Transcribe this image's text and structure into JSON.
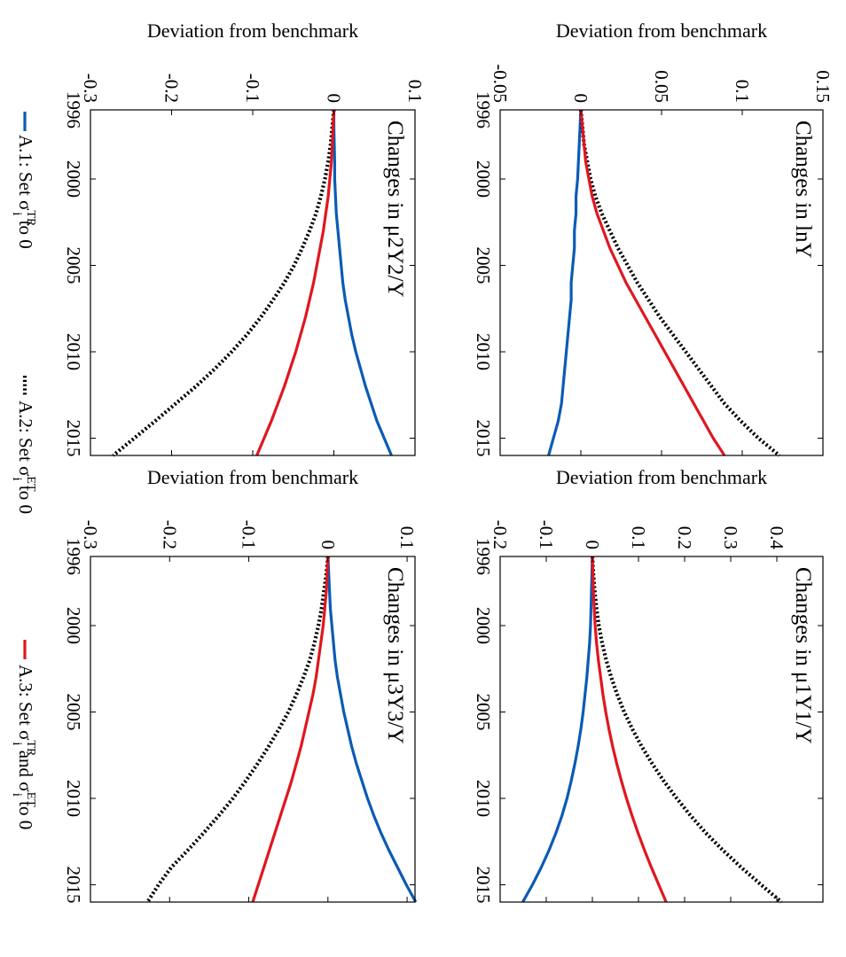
{
  "figure": {
    "ylabel": "Deviation from benchmark",
    "legend": {
      "placement": "bottom",
      "entries": [
        {
          "id": "A1",
          "prefix": "A.1: Set σ",
          "sup": "TR",
          "sub": "i",
          "suffix": " to 0",
          "color": "#0a5bb5",
          "style": "solid"
        },
        {
          "id": "A2",
          "prefix": "A.2: Set σ",
          "sup": "ET",
          "sub": "i",
          "suffix": " to 0",
          "color": "#000000",
          "style": "dotted"
        },
        {
          "id": "A3",
          "prefix": "A.3: Set σ",
          "sup": "TR",
          "sub": "i",
          "mid": " and σ",
          "sup2": "ET",
          "sub2": "i",
          "suffix": " to 0",
          "color": "#e0161e",
          "style": "solid"
        }
      ]
    }
  },
  "chart_data": [
    {
      "type": "line",
      "title": "Changes in lnY",
      "ylabel": "Deviation from benchmark",
      "xlim": [
        1996,
        2016
      ],
      "ylim": [
        -0.05,
        0.15
      ],
      "xticks": [
        1996,
        2000,
        2005,
        2010,
        2015
      ],
      "yticks": [
        -0.05,
        0,
        0.05,
        0.1,
        0.15
      ],
      "ytick_labels": [
        "-0.05",
        "0",
        "0.05",
        "0.1",
        "0.15"
      ],
      "x": [
        1996,
        1997,
        1998,
        1999,
        2000,
        2001,
        2002,
        2003,
        2004,
        2005,
        2006,
        2007,
        2008,
        2009,
        2010,
        2011,
        2012,
        2013,
        2014,
        2015,
        2016
      ],
      "series": [
        {
          "id": "A1",
          "values": [
            0,
            -0.0005,
            -0.001,
            -0.0015,
            -0.002,
            -0.003,
            -0.003,
            -0.004,
            -0.004,
            -0.005,
            -0.006,
            -0.006,
            -0.007,
            -0.008,
            -0.009,
            -0.01,
            -0.011,
            -0.012,
            -0.014,
            -0.017,
            -0.02
          ]
        },
        {
          "id": "A2",
          "values": [
            0,
            0.001,
            0.002,
            0.004,
            0.006,
            0.009,
            0.013,
            0.018,
            0.023,
            0.029,
            0.035,
            0.042,
            0.049,
            0.057,
            0.065,
            0.073,
            0.081,
            0.089,
            0.099,
            0.11,
            0.123
          ]
        },
        {
          "id": "A3",
          "values": [
            0,
            0.001,
            0.002,
            0.003,
            0.005,
            0.007,
            0.01,
            0.014,
            0.018,
            0.023,
            0.028,
            0.034,
            0.04,
            0.046,
            0.052,
            0.058,
            0.064,
            0.07,
            0.076,
            0.082,
            0.089
          ]
        }
      ]
    },
    {
      "type": "line",
      "title": "Changes in μ1Y1/Y",
      "ylabel": "Deviation from benchmark",
      "xlim": [
        1996,
        2016
      ],
      "ylim": [
        -0.2,
        0.5
      ],
      "xticks": [
        1996,
        2000,
        2005,
        2010,
        2015
      ],
      "yticks": [
        -0.2,
        -0.1,
        0,
        0.1,
        0.2,
        0.3,
        0.4
      ],
      "ytick_labels": [
        "-0.2",
        "-0.1",
        "0",
        "0.1",
        "0.2",
        "0.3",
        "0.4"
      ],
      "x": [
        1996,
        1997,
        1998,
        1999,
        2000,
        2001,
        2002,
        2003,
        2004,
        2005,
        2006,
        2007,
        2008,
        2009,
        2010,
        2011,
        2012,
        2013,
        2014,
        2015,
        2016
      ],
      "series": [
        {
          "id": "A1",
          "values": [
            0,
            -0.001,
            -0.002,
            -0.003,
            -0.004,
            -0.006,
            -0.009,
            -0.012,
            -0.016,
            -0.02,
            -0.025,
            -0.031,
            -0.038,
            -0.046,
            -0.055,
            -0.066,
            -0.079,
            -0.094,
            -0.111,
            -0.13,
            -0.151
          ]
        },
        {
          "id": "A2",
          "values": [
            0,
            0.002,
            0.005,
            0.009,
            0.014,
            0.021,
            0.03,
            0.041,
            0.054,
            0.069,
            0.087,
            0.107,
            0.13,
            0.155,
            0.183,
            0.213,
            0.246,
            0.283,
            0.323,
            0.366,
            0.41
          ]
        },
        {
          "id": "A3",
          "values": [
            0,
            0.001,
            0.002,
            0.004,
            0.006,
            0.009,
            0.013,
            0.018,
            0.023,
            0.029,
            0.036,
            0.044,
            0.053,
            0.063,
            0.074,
            0.086,
            0.099,
            0.113,
            0.128,
            0.144,
            0.16
          ]
        }
      ]
    },
    {
      "type": "line",
      "title": "Changes in μ2Y2/Y",
      "ylabel": "Deviation from benchmark",
      "xlim": [
        1996,
        2016
      ],
      "ylim": [
        -0.3,
        0.1
      ],
      "xticks": [
        1996,
        2000,
        2005,
        2010,
        2015
      ],
      "yticks": [
        -0.3,
        -0.2,
        -0.1,
        0,
        0.1
      ],
      "ytick_labels": [
        "-0.3",
        "-0.2",
        "-0.1",
        "0",
        "0.1"
      ],
      "x": [
        1996,
        1997,
        1998,
        1999,
        2000,
        2001,
        2002,
        2003,
        2004,
        2005,
        2006,
        2007,
        2008,
        2009,
        2010,
        2011,
        2012,
        2013,
        2014,
        2015,
        2016
      ],
      "series": [
        {
          "id": "A1",
          "values": [
            0,
            0,
            0.0005,
            0.001,
            0.001,
            0.002,
            0.003,
            0.005,
            0.007,
            0.009,
            0.011,
            0.014,
            0.018,
            0.022,
            0.027,
            0.033,
            0.039,
            0.046,
            0.053,
            0.062,
            0.071
          ]
        },
        {
          "id": "A2",
          "values": [
            0,
            -0.002,
            -0.004,
            -0.007,
            -0.011,
            -0.016,
            -0.022,
            -0.03,
            -0.039,
            -0.049,
            -0.061,
            -0.075,
            -0.09,
            -0.107,
            -0.126,
            -0.147,
            -0.17,
            -0.195,
            -0.22,
            -0.246,
            -0.272
          ]
        },
        {
          "id": "A3",
          "values": [
            0,
            -0.001,
            -0.002,
            -0.003,
            -0.005,
            -0.007,
            -0.01,
            -0.013,
            -0.017,
            -0.021,
            -0.025,
            -0.03,
            -0.035,
            -0.041,
            -0.047,
            -0.054,
            -0.061,
            -0.069,
            -0.077,
            -0.086,
            -0.095
          ]
        }
      ]
    },
    {
      "type": "line",
      "title": "Changes in μ3Y3/Y",
      "ylabel": "Deviation from benchmark",
      "xlim": [
        1996,
        2016
      ],
      "ylim": [
        -0.3,
        0.11
      ],
      "xticks": [
        1996,
        2000,
        2005,
        2010,
        2015
      ],
      "yticks": [
        -0.3,
        -0.2,
        -0.1,
        0,
        0.1
      ],
      "ytick_labels": [
        "-0.3",
        "-0.2",
        "-0.1",
        "0",
        "0.1"
      ],
      "x": [
        1996,
        1997,
        1998,
        1999,
        2000,
        2001,
        2002,
        2003,
        2004,
        2005,
        2006,
        2007,
        2008,
        2009,
        2010,
        2011,
        2012,
        2013,
        2014,
        2015,
        2016
      ],
      "series": [
        {
          "id": "A1",
          "values": [
            0,
            0.001,
            0.002,
            0.003,
            0.005,
            0.007,
            0.009,
            0.012,
            0.016,
            0.02,
            0.025,
            0.03,
            0.036,
            0.043,
            0.05,
            0.058,
            0.067,
            0.077,
            0.088,
            0.099,
            0.111
          ]
        },
        {
          "id": "A2",
          "values": [
            0,
            -0.002,
            -0.005,
            -0.008,
            -0.012,
            -0.017,
            -0.023,
            -0.031,
            -0.04,
            -0.05,
            -0.062,
            -0.075,
            -0.089,
            -0.104,
            -0.12,
            -0.138,
            -0.157,
            -0.177,
            -0.198,
            -0.214,
            -0.228
          ]
        },
        {
          "id": "A3",
          "values": [
            0,
            -0.001,
            -0.002,
            -0.004,
            -0.006,
            -0.009,
            -0.012,
            -0.015,
            -0.019,
            -0.024,
            -0.029,
            -0.034,
            -0.04,
            -0.046,
            -0.053,
            -0.06,
            -0.067,
            -0.074,
            -0.081,
            -0.088,
            -0.095
          ]
        }
      ]
    }
  ]
}
